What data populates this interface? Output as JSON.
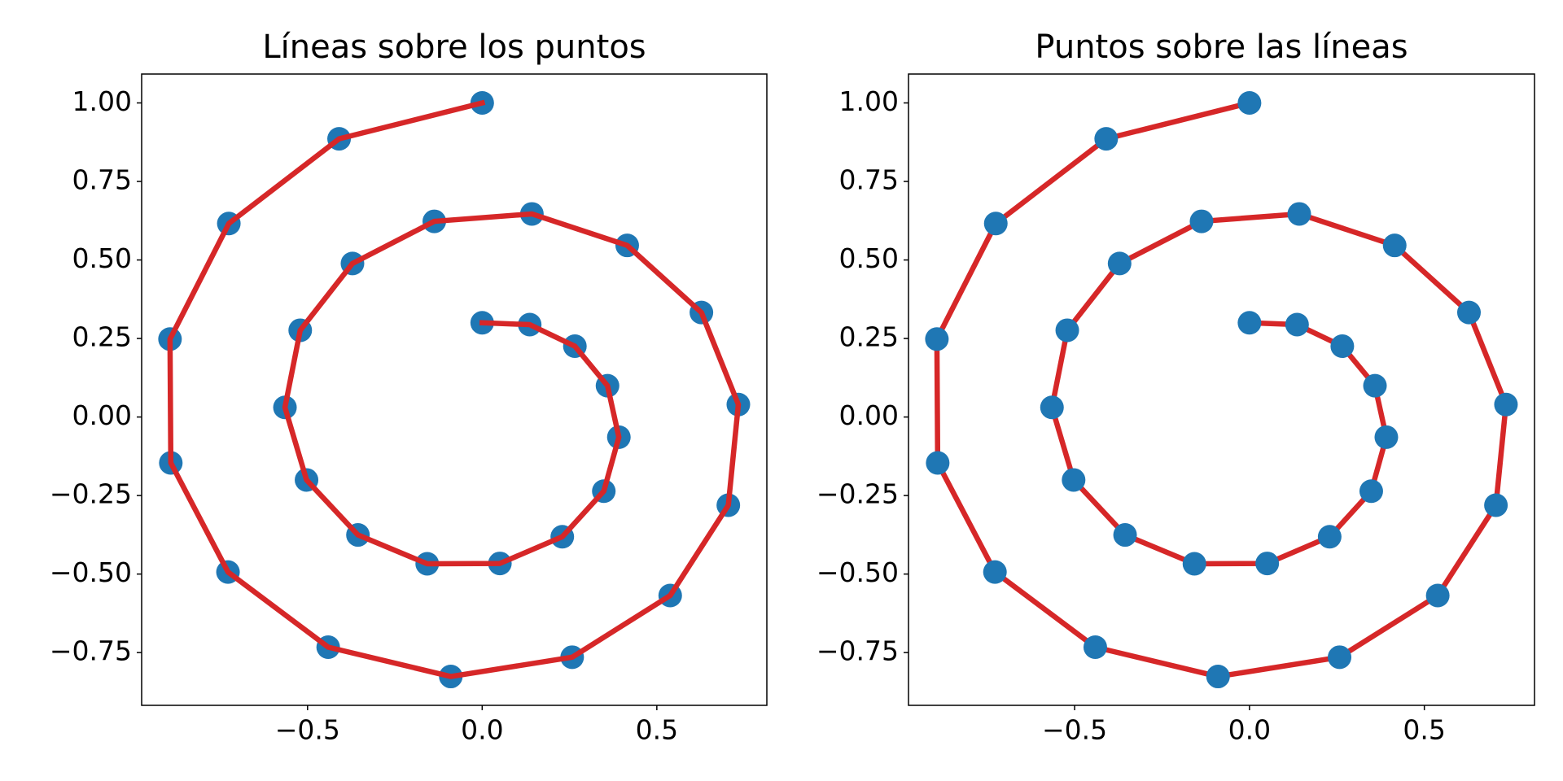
{
  "chart_data": [
    {
      "type": "line",
      "title": "Líneas sobre los puntos",
      "line_on_top": true,
      "x": [
        0,
        0.1361,
        0.2654,
        0.3588,
        0.3913,
        0.3482,
        0.2293,
        0.0507,
        -0.1574,
        -0.3557,
        -0.5029,
        -0.5647,
        -0.521,
        -0.3714,
        -0.1371,
        0.1423,
        0.4152,
        0.6276,
        0.7334,
        0.7047,
        0.5383,
        0.2576,
        -0.0899,
        -0.4409,
        -0.7278,
        -0.8915,
        -0.8938,
        -0.7254,
        -0.4097,
        0
      ],
      "series": [
        {
          "color": "#d62728",
          "marker_color": "#1f77b4",
          "values": [
            0.3,
            0.2942,
            0.2255,
            0.0996,
            -0.0642,
            -0.2361,
            -0.3812,
            -0.4662,
            -0.4673,
            -0.3755,
            -0.2004,
            0.0306,
            0.2762,
            0.4887,
            0.623,
            0.6466,
            0.5463,
            0.3327,
            0.0398,
            -0.2808,
            -0.5683,
            -0.7647,
            -0.8262,
            -0.7328,
            -0.4935,
            -0.1462,
            0.2481,
            0.6161,
            0.8857,
            1.0
          ]
        }
      ],
      "xlim": [
        -0.975,
        0.815
      ],
      "ylim": [
        -0.918,
        1.092
      ],
      "xticks": [
        {
          "value": -0.5,
          "label": "−0.5"
        },
        {
          "value": 0,
          "label": "0.0"
        },
        0.5
      ],
      "yticks": [
        {
          "value": -0.75,
          "label": "−0.75"
        },
        {
          "value": -0.5,
          "label": "−0.50"
        },
        {
          "value": -0.25,
          "label": "−0.25"
        },
        {
          "value": 0,
          "label": "0.00"
        },
        {
          "value": 0.25,
          "label": "0.25"
        },
        {
          "value": 0.5,
          "label": "0.50"
        },
        {
          "value": 0.75,
          "label": "0.75"
        },
        {
          "value": 1,
          "label": "1.00"
        }
      ]
    },
    {
      "type": "line",
      "title": "Puntos sobre las líneas",
      "line_on_top": false,
      "x": [
        0,
        0.1361,
        0.2654,
        0.3588,
        0.3913,
        0.3482,
        0.2293,
        0.0507,
        -0.1574,
        -0.3557,
        -0.5029,
        -0.5647,
        -0.521,
        -0.3714,
        -0.1371,
        0.1423,
        0.4152,
        0.6276,
        0.7334,
        0.7047,
        0.5383,
        0.2576,
        -0.0899,
        -0.4409,
        -0.7278,
        -0.8915,
        -0.8938,
        -0.7254,
        -0.4097,
        0
      ],
      "series": [
        {
          "color": "#d62728",
          "marker_color": "#1f77b4",
          "values": [
            0.3,
            0.2942,
            0.2255,
            0.0996,
            -0.0642,
            -0.2361,
            -0.3812,
            -0.4662,
            -0.4673,
            -0.3755,
            -0.2004,
            0.0306,
            0.2762,
            0.4887,
            0.623,
            0.6466,
            0.5463,
            0.3327,
            0.0398,
            -0.2808,
            -0.5683,
            -0.7647,
            -0.8262,
            -0.7328,
            -0.4935,
            -0.1462,
            0.2481,
            0.6161,
            0.8857,
            1.0
          ]
        }
      ],
      "xlim": [
        -0.975,
        0.815
      ],
      "ylim": [
        -0.918,
        1.092
      ],
      "xticks": [
        {
          "value": -0.5,
          "label": "−0.5"
        },
        {
          "value": 0,
          "label": "0.0"
        },
        0.5
      ],
      "yticks": [
        {
          "value": -0.75,
          "label": "−0.75"
        },
        {
          "value": -0.5,
          "label": "−0.50"
        },
        {
          "value": -0.25,
          "label": "−0.25"
        },
        {
          "value": 0,
          "label": "0.00"
        },
        {
          "value": 0.25,
          "label": "0.25"
        },
        {
          "value": 0.5,
          "label": "0.50"
        },
        {
          "value": 0.75,
          "label": "0.75"
        },
        {
          "value": 1,
          "label": "1.00"
        }
      ]
    }
  ]
}
